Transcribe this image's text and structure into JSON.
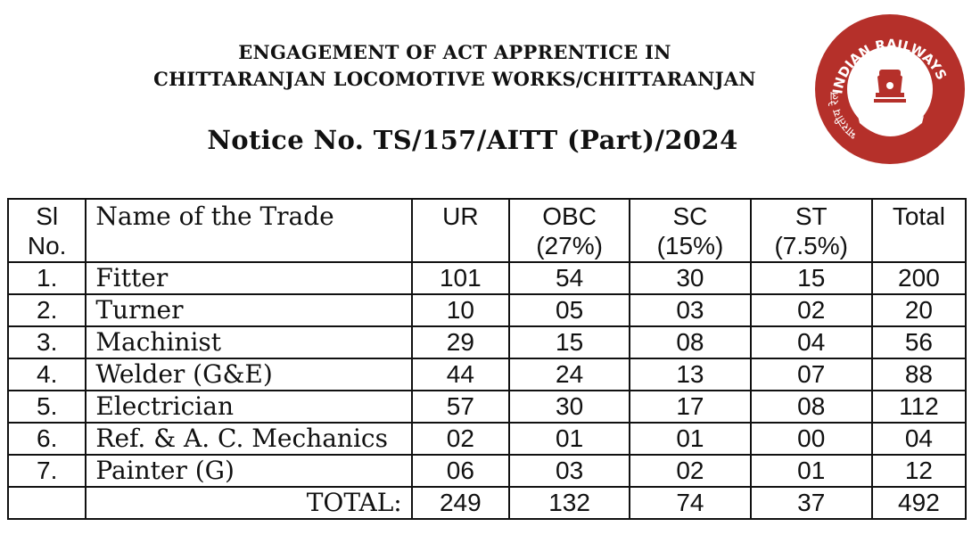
{
  "header": {
    "line1": "ENGAGEMENT OF ACT APPRENTICE IN",
    "line2": "CHITTARANJAN LOCOMOTIVE WORKS/CHITTARANJAN",
    "notice": "Notice No. TS/157/AITT (Part)/2024"
  },
  "logo": {
    "arc_text": "INDIAN RAILWAYS",
    "hindi_text": "भारतीय रेल",
    "color": "#b5302a"
  },
  "table": {
    "headers": {
      "sl_line1": "Sl",
      "sl_line2": "No.",
      "trade": "Name of the Trade",
      "ur": "UR",
      "obc_line1": "OBC",
      "obc_line2": "(27%)",
      "sc_line1": "SC",
      "sc_line2": "(15%)",
      "st_line1": "ST",
      "st_line2": "(7.5%)",
      "total": "Total"
    },
    "rows": [
      {
        "sl": "1.",
        "trade": "Fitter",
        "ur": "101",
        "obc": "54",
        "sc": "30",
        "st": "15",
        "total": "200"
      },
      {
        "sl": "2.",
        "trade": "Turner",
        "ur": "10",
        "obc": "05",
        "sc": "03",
        "st": "02",
        "total": "20"
      },
      {
        "sl": "3.",
        "trade": "Machinist",
        "ur": "29",
        "obc": "15",
        "sc": "08",
        "st": "04",
        "total": "56"
      },
      {
        "sl": "4.",
        "trade": "Welder (G&E)",
        "ur": "44",
        "obc": "24",
        "sc": "13",
        "st": "07",
        "total": "88"
      },
      {
        "sl": "5.",
        "trade": "Electrician",
        "ur": "57",
        "obc": "30",
        "sc": "17",
        "st": "08",
        "total": "112"
      },
      {
        "sl": "6.",
        "trade": "Ref. & A. C. Mechanics",
        "ur": "02",
        "obc": "01",
        "sc": "01",
        "st": "00",
        "total": "04"
      },
      {
        "sl": "7.",
        "trade": "Painter (G)",
        "ur": "06",
        "obc": "03",
        "sc": "02",
        "st": "01",
        "total": "12"
      }
    ],
    "totals": {
      "label": "TOTAL:",
      "ur": "249",
      "obc": "132",
      "sc": "74",
      "st": "37",
      "total": "492"
    }
  }
}
